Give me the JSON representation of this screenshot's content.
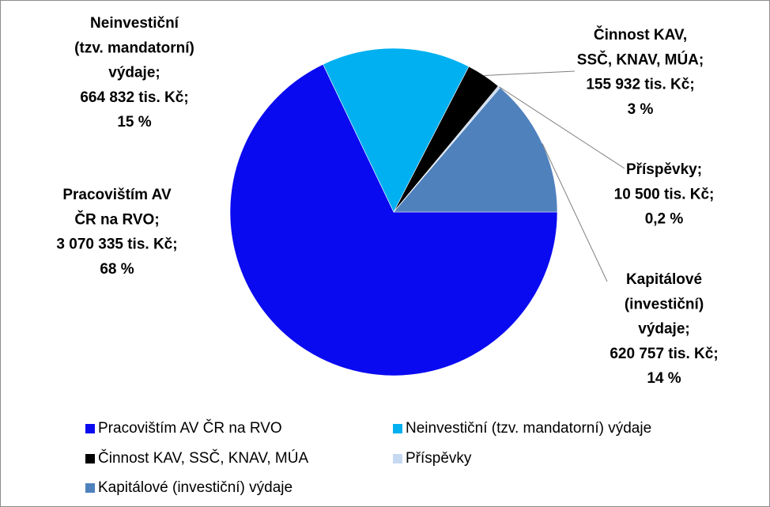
{
  "chart_data": {
    "type": "pie",
    "categories": [
      "Pracovištím AV ČR na RVO",
      "Neinvestiční (tzv. mandatorní) výdaje",
      "Činnost KAV, SSČ, KNAV, MÚA",
      "Příspěvky",
      "Kapitálové (investiční) výdaje"
    ],
    "values": [
      3070335,
      664832,
      155932,
      10500,
      620757
    ],
    "value_labels": [
      "3 070 335 tis. Kč;",
      "664 832 tis. Kč;",
      "155 932 tis. Kč;",
      "10 500 tis. Kč;",
      "620 757 tis. Kč;"
    ],
    "percents": [
      68,
      15,
      3,
      0.2,
      14
    ],
    "percent_labels": [
      "68 %",
      "15 %",
      "3 %",
      "0,2 %",
      "14 %"
    ],
    "label_name_lines": [
      [
        "Pracovištím AV",
        "ČR na RVO;"
      ],
      [
        "Neinvestiční",
        "(tzv. mandatorní)",
        "výdaje;"
      ],
      [
        "Činnost KAV,",
        "SSČ, KNAV, MÚA;"
      ],
      [
        "Příspěvky;"
      ],
      [
        "Kapitálové",
        "(investiční)",
        "výdaje;"
      ]
    ],
    "colors": [
      "#0a0af0",
      "#00b0f0",
      "#000000",
      "#c6d9f1",
      "#4f81bd"
    ],
    "legend": "bottom"
  }
}
